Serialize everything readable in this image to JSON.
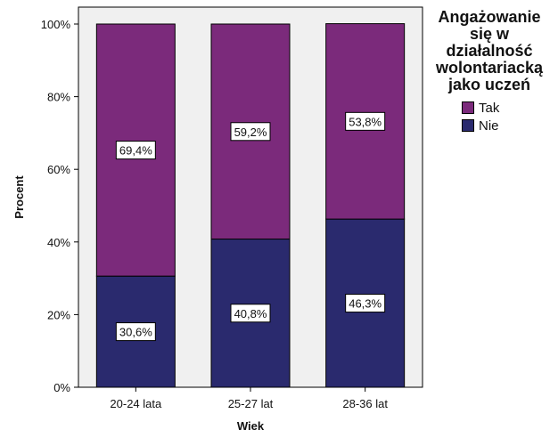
{
  "chart_data": {
    "type": "bar",
    "stacked": true,
    "categories": [
      "20-24 lata",
      "25-27 lat",
      "28-36 lat"
    ],
    "series": [
      {
        "name": "Nie",
        "values": [
          30.6,
          40.8,
          46.3
        ],
        "labels": [
          "30,6%",
          "40,8%",
          "46,3%"
        ],
        "color": "#2a2a6e"
      },
      {
        "name": "Tak",
        "values": [
          69.4,
          59.2,
          53.8
        ],
        "labels": [
          "69,4%",
          "59,2%",
          "53,8%"
        ],
        "color": "#7b2a7b"
      }
    ],
    "xlabel": "Wiek",
    "ylabel": "Procent",
    "ylim": [
      0,
      100
    ],
    "yticks": [
      0,
      20,
      40,
      60,
      80,
      100
    ],
    "ytick_labels": [
      "0%",
      "20%",
      "40%",
      "60%",
      "80%",
      "100%"
    ],
    "legend_title": "Angażowanie się w działalność wolontariacką jako uczeń",
    "legend_title_lines": [
      "Angażowanie",
      "się w",
      "działalność",
      "wolontariacką",
      "jako uczeń"
    ],
    "legend_order": [
      "Tak",
      "Nie"
    ],
    "legend_position": "right",
    "plot_background": "#f0f0f0",
    "grid": false
  }
}
